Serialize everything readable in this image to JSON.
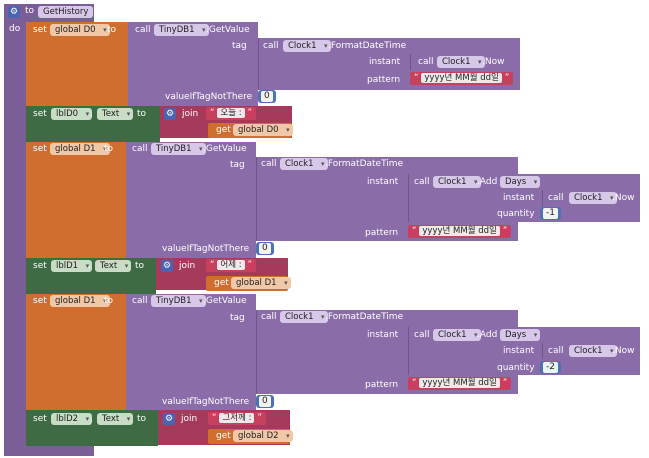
{
  "proc": {
    "to": "to",
    "name": "GetHistory",
    "do": "do"
  },
  "kw": {
    "set": "set",
    "to": "to",
    "call": "call",
    "get": "get",
    "join": "join",
    "tag": "tag",
    "instant": "instant",
    "pattern": "pattern",
    "quantity": "quantity",
    "valueIfTagNotThere": "valueIfTagNotThere",
    "text": "Text"
  },
  "blocks": {
    "b1": {
      "var": "global D0",
      "db": "TinyDB1",
      "method": ".GetValue",
      "clock": "Clock1",
      "fmt": ".FormatDateTime",
      "now": ".Now",
      "pattern": "yyyy년 MM월 dd일",
      "default": "0"
    },
    "b2": {
      "label": "lblD0",
      "prop": "Text",
      "str": "오늘 :",
      "getvar": "global D0"
    },
    "b3": {
      "var": "global D1",
      "db": "TinyDB1",
      "method": ".GetValue",
      "clock": "Clock1",
      "fmt": ".FormatDateTime",
      "add": ".Add",
      "unit": "Days",
      "now": ".Now",
      "qty": "-1",
      "pattern": "yyyy년 MM월 dd일",
      "default": "0"
    },
    "b4": {
      "label": "lblD1",
      "prop": "Text",
      "str": "어제 :",
      "getvar": "global D1"
    },
    "b5": {
      "var": "global D1",
      "db": "TinyDB1",
      "method": ".GetValue",
      "clock": "Clock1",
      "fmt": ".FormatDateTime",
      "add": ".Add",
      "unit": "Days",
      "now": ".Now",
      "qty": "-2",
      "pattern": "yyyy년 MM월 dd일",
      "default": "0"
    },
    "b6": {
      "label": "lblD2",
      "prop": "Text",
      "str": "그저께 :",
      "getvar": "global D2"
    }
  },
  "colors": {
    "procedure": "#7b5e98",
    "variable": "#cf6e2f",
    "component": "#3e6b44",
    "text": "#a63a5a",
    "math": "#3f63a8"
  }
}
